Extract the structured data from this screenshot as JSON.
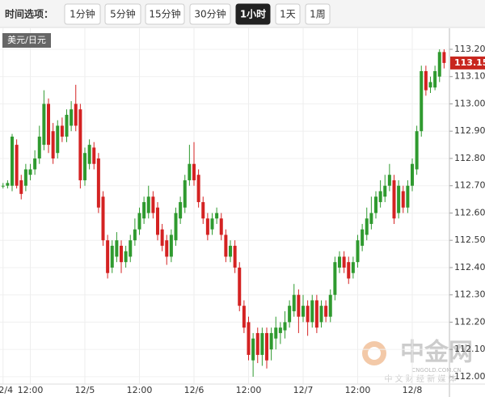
{
  "toolbar": {
    "label": "时间选项：",
    "buttons": [
      {
        "label": "1分钟"
      },
      {
        "label": "5分钟"
      },
      {
        "label": "15分钟"
      },
      {
        "label": "30分钟"
      },
      {
        "label": "1小时",
        "active": true
      },
      {
        "label": "1天"
      },
      {
        "label": "1周"
      }
    ]
  },
  "chart_data": {
    "type": "candlestick",
    "symbol": "美元/日元",
    "up_color": "#2f9a2f",
    "down_color": "#d42222",
    "grid": true,
    "ylim": [
      111.982,
      113.277
    ],
    "yticks": [
      {
        "value": 112,
        "label": "112.00"
      },
      {
        "value": 112.1,
        "label": "112.10"
      },
      {
        "value": 112.2,
        "label": "112.20"
      },
      {
        "value": 112.3,
        "label": "112.30"
      },
      {
        "value": 112.4,
        "label": "112.40"
      },
      {
        "value": 112.5,
        "label": "112.50"
      },
      {
        "value": 112.6,
        "label": "112.60"
      },
      {
        "value": 112.7,
        "label": "112.70"
      },
      {
        "value": 112.8,
        "label": "112.80"
      },
      {
        "value": 112.9,
        "label": "112.90"
      },
      {
        "value": 113,
        "label": "113.00"
      },
      {
        "value": 113.1,
        "label": "113.10"
      },
      {
        "value": 113.2,
        "label": "113.20"
      }
    ],
    "last_price": 113.15,
    "categories": [
      "12/4",
      null,
      null,
      null,
      null,
      null,
      "12:00",
      null,
      null,
      null,
      null,
      null,
      null,
      null,
      null,
      null,
      null,
      null,
      "12/5",
      null,
      null,
      null,
      null,
      null,
      null,
      null,
      null,
      null,
      null,
      null,
      "12:00",
      null,
      null,
      null,
      null,
      null,
      null,
      null,
      null,
      null,
      null,
      null,
      "12/6",
      null,
      null,
      null,
      null,
      null,
      null,
      null,
      null,
      null,
      null,
      null,
      "12:00",
      null,
      null,
      null,
      null,
      null,
      null,
      null,
      null,
      null,
      null,
      null,
      "12/7",
      null,
      null,
      null,
      null,
      null,
      null,
      null,
      null,
      null,
      null,
      null,
      "12:00",
      null,
      null,
      null,
      null,
      null,
      null,
      null,
      null,
      null,
      null,
      null,
      "12/8",
      null,
      null,
      null,
      null,
      null,
      null,
      null
    ],
    "open": [
      112.7,
      112.7,
      112.7,
      112.85,
      112.72,
      112.7,
      112.74,
      112.76,
      112.8,
      112.85,
      113.0,
      112.9,
      112.82,
      112.92,
      112.88,
      112.92,
      113.0,
      112.98,
      112.72,
      112.78,
      112.84,
      112.8,
      112.66,
      112.5,
      112.4,
      112.44,
      112.48,
      112.42,
      112.44,
      112.5,
      112.54,
      112.58,
      112.6,
      112.66,
      112.62,
      112.54,
      112.5,
      112.44,
      112.5,
      112.58,
      112.62,
      112.72,
      112.78,
      112.74,
      112.64,
      112.58,
      112.54,
      112.58,
      112.58,
      112.52,
      112.44,
      112.48,
      112.4,
      112.26,
      112.2,
      112.06,
      112.16,
      112.08,
      112.16,
      112.1,
      112.14,
      112.16,
      112.17,
      112.2,
      112.24,
      112.3,
      112.22,
      112.26,
      112.2,
      112.28,
      112.2,
      112.26,
      112.22,
      112.3,
      112.4,
      112.44,
      112.42,
      112.38,
      112.42,
      112.48,
      112.52,
      112.56,
      112.6,
      112.64,
      112.66,
      112.7,
      112.72,
      112.6,
      112.68,
      112.62,
      112.7,
      112.76,
      112.9,
      113.12,
      113.06,
      113.06,
      113.1,
      113.19
    ],
    "high": [
      112.71,
      112.72,
      112.89,
      112.87,
      112.74,
      112.78,
      112.78,
      112.83,
      112.92,
      113.05,
      113.02,
      112.93,
      112.94,
      112.95,
      112.98,
      113.01,
      113.07,
      113.0,
      112.84,
      112.87,
      112.86,
      112.82,
      112.68,
      112.52,
      112.5,
      112.53,
      112.5,
      112.48,
      112.52,
      112.58,
      112.62,
      112.66,
      112.7,
      112.68,
      112.64,
      112.56,
      112.52,
      112.54,
      112.62,
      112.66,
      112.74,
      112.85,
      112.86,
      112.76,
      112.66,
      112.6,
      112.6,
      112.62,
      112.6,
      112.54,
      112.5,
      112.5,
      112.42,
      112.28,
      112.22,
      112.16,
      112.18,
      112.18,
      112.18,
      112.18,
      112.22,
      112.2,
      112.24,
      112.28,
      112.34,
      112.32,
      112.3,
      112.28,
      112.3,
      112.3,
      112.28,
      112.28,
      112.32,
      112.44,
      112.46,
      112.46,
      112.44,
      112.44,
      112.52,
      112.56,
      112.62,
      112.66,
      112.68,
      112.72,
      112.74,
      112.78,
      112.74,
      112.72,
      112.7,
      112.72,
      112.8,
      112.92,
      113.14,
      113.14,
      113.1,
      113.14,
      113.2,
      113.2
    ],
    "low": [
      112.69,
      112.69,
      112.68,
      112.69,
      112.65,
      112.68,
      112.72,
      112.74,
      112.78,
      112.83,
      112.82,
      112.78,
      112.8,
      112.86,
      112.86,
      112.9,
      112.9,
      112.69,
      112.7,
      112.76,
      112.76,
      112.6,
      112.48,
      112.36,
      112.38,
      112.42,
      112.38,
      112.4,
      112.42,
      112.48,
      112.52,
      112.56,
      112.58,
      112.58,
      112.5,
      112.46,
      112.41,
      112.42,
      112.48,
      112.56,
      112.6,
      112.7,
      112.7,
      112.62,
      112.56,
      112.5,
      112.52,
      112.56,
      112.5,
      112.42,
      112.42,
      112.38,
      112.24,
      112.16,
      112.06,
      112.0,
      112.05,
      112.04,
      112.03,
      112.06,
      112.1,
      112.12,
      112.14,
      112.18,
      112.22,
      112.16,
      112.2,
      112.15,
      112.18,
      112.16,
      112.18,
      112.2,
      112.2,
      112.28,
      112.38,
      112.38,
      112.34,
      112.36,
      112.4,
      112.46,
      112.5,
      112.54,
      112.58,
      112.62,
      112.64,
      112.68,
      112.56,
      112.58,
      112.6,
      112.6,
      112.68,
      112.74,
      112.88,
      113.03,
      113.04,
      113.05,
      113.08,
      113.13
    ],
    "close": [
      112.7,
      112.71,
      112.88,
      112.7,
      112.67,
      112.76,
      112.76,
      112.8,
      112.88,
      113.0,
      112.85,
      112.8,
      112.92,
      112.88,
      112.96,
      112.98,
      112.92,
      112.72,
      112.82,
      112.85,
      112.78,
      112.62,
      112.5,
      112.38,
      112.48,
      112.5,
      112.42,
      112.46,
      112.5,
      112.54,
      112.6,
      112.64,
      112.66,
      112.6,
      112.52,
      112.48,
      112.44,
      112.52,
      112.6,
      112.64,
      112.72,
      112.78,
      112.72,
      112.64,
      112.58,
      112.52,
      112.58,
      112.6,
      112.52,
      112.44,
      112.48,
      112.4,
      112.26,
      112.18,
      112.08,
      112.14,
      112.08,
      112.16,
      112.06,
      112.16,
      112.18,
      112.18,
      112.2,
      112.26,
      112.3,
      112.22,
      112.26,
      112.2,
      112.28,
      112.18,
      112.26,
      112.22,
      112.3,
      112.42,
      112.44,
      112.4,
      112.36,
      112.42,
      112.5,
      112.54,
      112.58,
      112.6,
      112.66,
      112.68,
      112.7,
      112.74,
      112.58,
      112.7,
      112.62,
      112.7,
      112.78,
      112.9,
      113.12,
      113.05,
      113.08,
      113.12,
      113.19,
      113.15
    ]
  },
  "watermark": {
    "name": "中金网",
    "site": "CNGOLD.COM.CN",
    "tagline": "中 文 财 经 新 媒 体"
  }
}
